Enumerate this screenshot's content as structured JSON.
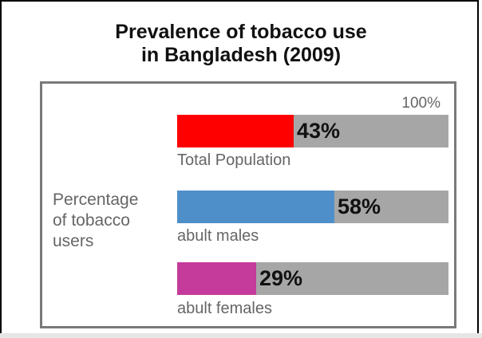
{
  "title": {
    "line1": "Prevalence of tobacco use",
    "line2": "in Bangladesh (2009)"
  },
  "side_label": {
    "line1": "Percentage",
    "line2": "of tobacco",
    "line3": "users"
  },
  "chart_data": {
    "type": "bar",
    "orientation": "horizontal",
    "title": "Prevalence of tobacco use in Bangladesh (2009)",
    "ylabel": "Percentage of tobacco users",
    "max_label": "100%",
    "xlim": [
      0,
      100
    ],
    "categories": [
      "Total Population",
      "abult males",
      "abult females"
    ],
    "values": [
      43,
      58,
      29
    ],
    "value_labels": [
      "43%",
      "58%",
      "29%"
    ],
    "colors": [
      "#ff0000",
      "#4f8fc9",
      "#c43b9b"
    ],
    "track_color": "#a6a6a6",
    "grid": false
  }
}
